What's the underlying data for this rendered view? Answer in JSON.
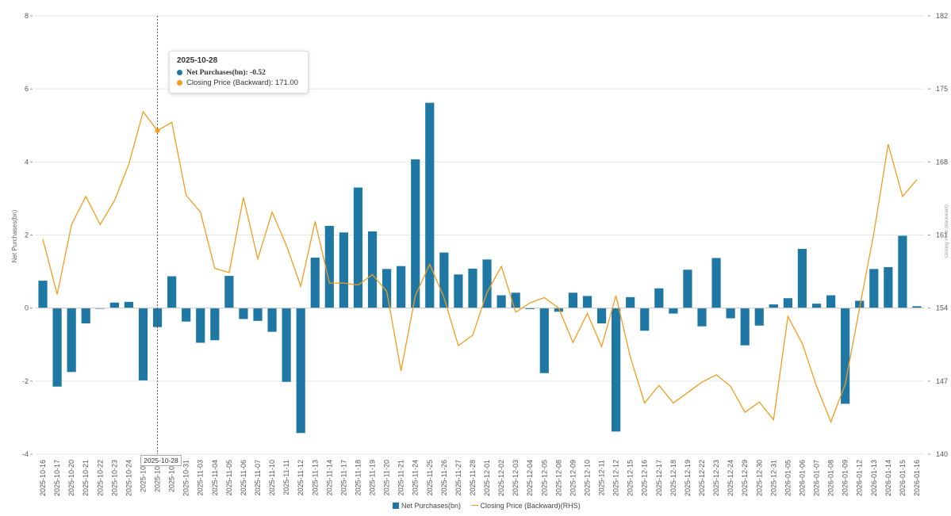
{
  "chart_data": {
    "type": "bar+line",
    "left_axis": {
      "title": "Net Purchases(bn)",
      "min": -4,
      "max": 8,
      "ticks": [
        -4,
        -2,
        0,
        2,
        4,
        6,
        8
      ]
    },
    "right_axis": {
      "title": "Closing Price (Backward)",
      "min": 140,
      "max": 182,
      "ticks": [
        140,
        147,
        154,
        161,
        168,
        175,
        182
      ]
    },
    "categories": [
      "2025-10-16",
      "2025-10-17",
      "2025-10-20",
      "2025-10-21",
      "2025-10-22",
      "2025-10-23",
      "2025-10-24",
      "2025-10-27",
      "2025-10-28",
      "2025-10-30",
      "2025-10-31",
      "2025-11-03",
      "2025-11-04",
      "2025-11-05",
      "2025-11-06",
      "2025-11-07",
      "2025-11-10",
      "2025-11-11",
      "2025-11-12",
      "2025-11-13",
      "2025-11-14",
      "2025-11-17",
      "2025-11-18",
      "2025-11-19",
      "2025-11-20",
      "2025-11-21",
      "2025-11-24",
      "2025-11-25",
      "2025-11-26",
      "2025-11-27",
      "2025-11-28",
      "2025-12-01",
      "2025-12-02",
      "2025-12-03",
      "2025-12-04",
      "2025-12-05",
      "2025-12-08",
      "2025-12-09",
      "2025-12-10",
      "2025-12-11",
      "2025-12-12",
      "2025-12-15",
      "2025-12-16",
      "2025-12-17",
      "2025-12-18",
      "2025-12-19",
      "2025-12-22",
      "2025-12-23",
      "2025-12-24",
      "2025-12-29",
      "2025-12-30",
      "2025-12-31",
      "2026-01-05",
      "2026-01-06",
      "2026-01-07",
      "2026-01-08",
      "2026-01-09",
      "2026-01-12",
      "2026-01-13",
      "2026-01-14",
      "2026-01-15",
      "2026-01-16"
    ],
    "x_tick_labels": [
      "2025-10-16",
      "2025-10-17",
      "2025-10-20",
      "2025-10-21",
      "2025-10-22",
      "2025-10-23",
      "2025-10-24",
      "2025-10-2",
      "2025-10-2",
      "2025-10-3",
      "2025-10-31",
      "2025-11-03",
      "2025-11-04",
      "2025-11-05",
      "2025-11-06",
      "2025-11-07",
      "2025-11-10",
      "2025-11-11",
      "2025-11-12",
      "2025-11-13",
      "2025-11-14",
      "2025-11-17",
      "2025-11-18",
      "2025-11-19",
      "2025-11-20",
      "2025-11-21",
      "2025-11-24",
      "2025-11-25",
      "2025-11-26",
      "2025-11-27",
      "2025-11-28",
      "2025-12-01",
      "2025-12-02",
      "2025-12-03",
      "2025-12-04",
      "2025-12-05",
      "2025-12-08",
      "2025-12-09",
      "2025-12-10",
      "2025-12-11",
      "2025-12-12",
      "2025-12-15",
      "2025-12-16",
      "2025-12-17",
      "2025-12-18",
      "2025-12-19",
      "2025-12-22",
      "2025-12-23",
      "2025-12-24",
      "2025-12-29",
      "2025-12-30",
      "2025-12-31",
      "2026-01-05",
      "2026-01-06",
      "2026-01-07",
      "2026-01-08",
      "2026-01-09",
      "2026-01-12",
      "2026-01-13",
      "2026-01-14",
      "2026-01-15",
      "2026-01-16"
    ],
    "series": [
      {
        "name": "Net Purchases(bn)",
        "type": "bar",
        "axis": "left",
        "color": "#1f77a4",
        "values": [
          0.75,
          -2.15,
          -1.75,
          -0.42,
          -0.02,
          0.15,
          0.17,
          -1.98,
          -0.52,
          0.87,
          -0.37,
          -0.95,
          -0.88,
          0.88,
          -0.3,
          -0.35,
          -0.65,
          -2.02,
          -3.42,
          1.38,
          2.25,
          2.07,
          3.3,
          2.1,
          1.07,
          1.15,
          4.07,
          5.62,
          1.52,
          0.92,
          1.08,
          1.33,
          0.35,
          0.42,
          -0.03,
          -1.78,
          -0.1,
          0.42,
          0.33,
          -0.42,
          -3.38,
          0.3,
          -0.62,
          0.54,
          -0.15,
          1.05,
          -0.5,
          1.37,
          -0.28,
          -1.02,
          -0.48,
          0.1,
          0.27,
          1.62,
          0.12,
          0.35,
          -2.62,
          0.2,
          1.07,
          1.12,
          1.98,
          0.05
        ]
      },
      {
        "name": "Closing Price (Backward)",
        "type": "line",
        "axis": "right",
        "color": "#f39c1e",
        "values": [
          160.6,
          155.3,
          162.0,
          164.7,
          162.0,
          164.3,
          167.8,
          172.8,
          171.0,
          171.8,
          164.8,
          163.2,
          157.8,
          157.4,
          164.6,
          158.7,
          163.2,
          160.0,
          156.1,
          162.3,
          156.4,
          156.4,
          156.2,
          157.2,
          155.6,
          148.0,
          155.2,
          158.2,
          155.0,
          150.4,
          151.4,
          155.5,
          158.0,
          153.6,
          154.5,
          155.0,
          154.0,
          150.7,
          153.5,
          150.3,
          155.2,
          149.3,
          144.9,
          146.6,
          144.9,
          145.9,
          146.9,
          147.6,
          146.5,
          144.0,
          145.0,
          143.3,
          153.2,
          150.6,
          146.5,
          143.1,
          146.7,
          154.0,
          161.2,
          169.7,
          164.7,
          166.3
        ]
      }
    ],
    "tooltip": {
      "date": "2025-10-28",
      "line1": "Net Purchases(bn): -0.52",
      "line2": "Closing Price (Backward): 171.00"
    },
    "crosshair": {
      "category_index": 8,
      "label": "2025-10-28"
    },
    "legend": {
      "position": "bottom",
      "bar_label": "Net Purchases(bn)",
      "line_label": "Closing Price (Backward)(RHS)"
    },
    "right_axis_cut_label": "Closing Price (Backward)"
  }
}
